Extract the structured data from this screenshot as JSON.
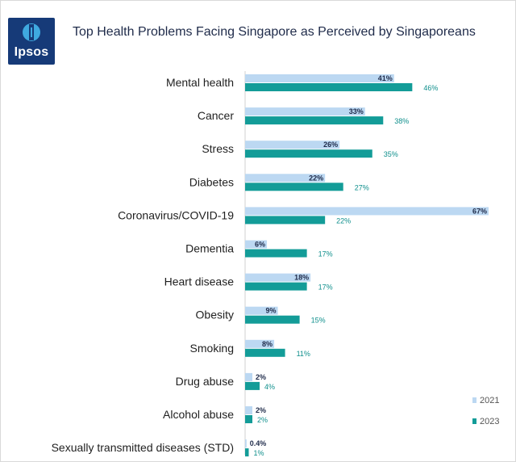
{
  "header": {
    "logo_text": "Ipsos",
    "title": "Top Health Problems Facing Singapore as Perceived by Singaporeans"
  },
  "colors": {
    "series_2021": "#bcd8f2",
    "series_2023": "#139c98",
    "logo_bg": "#163a78"
  },
  "chart_data": {
    "type": "bar",
    "orientation": "horizontal",
    "title": "Top Health Problems Facing Singapore as Perceived by Singaporeans",
    "categories": [
      "Mental health",
      "Cancer",
      "Stress",
      "Diabetes",
      "Coronavirus/COVID-19",
      "Dementia",
      "Heart disease",
      "Obesity",
      "Smoking",
      "Drug abuse",
      "Alcohol abuse",
      "Sexually transmitted diseases (STD)"
    ],
    "series": [
      {
        "name": "2021",
        "values": [
          41,
          33,
          26,
          22,
          67,
          6,
          18,
          9,
          8,
          2,
          2,
          0.4
        ],
        "labels": [
          "41%",
          "33%",
          "26%",
          "22%",
          "67%",
          "6%",
          "18%",
          "9%",
          "8%",
          "2%",
          "2%",
          "0.4%"
        ]
      },
      {
        "name": "2023",
        "values": [
          46,
          38,
          35,
          27,
          22,
          17,
          17,
          15,
          11,
          4,
          2,
          1
        ],
        "labels": [
          "46%",
          "38%",
          "35%",
          "27%",
          "22%",
          "17%",
          "17%",
          "15%",
          "11%",
          "4%",
          "2%",
          "1%"
        ]
      }
    ],
    "unit": "%",
    "xlim": [
      0,
      67
    ],
    "legend": "bottom-right",
    "grid": false
  }
}
